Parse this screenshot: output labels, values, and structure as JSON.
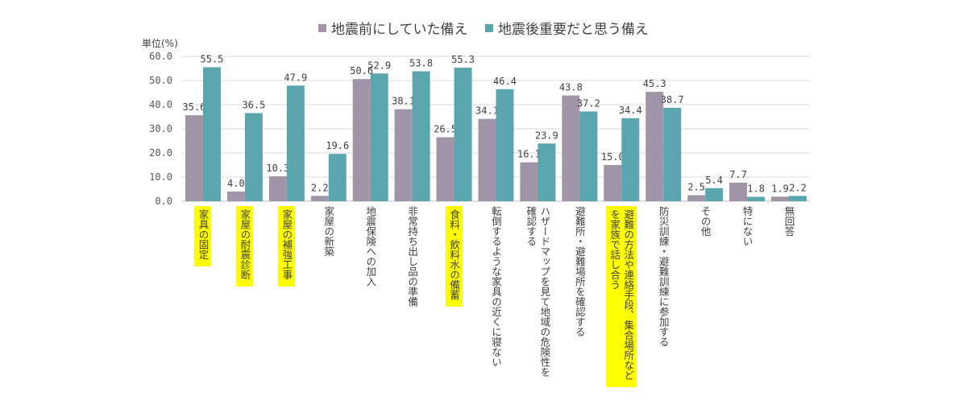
{
  "chart_data": {
    "type": "bar",
    "unit_label": "単位(%)",
    "ylim": [
      0,
      60
    ],
    "yticks": [
      "0.0",
      "10.0",
      "20.0",
      "30.0",
      "40.0",
      "50.0",
      "60.0"
    ],
    "grid": true,
    "legend_position": "top-center",
    "categories": [
      "家具の固定",
      "家屋の耐震診断",
      "家屋の補強工事",
      "家屋の新築",
      "地震保険への加入",
      "非常持ち出し品の準備",
      "食料・飲料水の備蓄",
      "転倒するような家具の近くに寝ない",
      "ハザードマップを見て地域の危険性を\n確認する",
      "避難所・避難場所を確認する",
      "避難の方法や連絡手段、集合場所など\nを家族で話し合う",
      "防災訓練・避難訓練に参加する",
      "その他",
      "特にない",
      "無回答"
    ],
    "highlighted": [
      true,
      true,
      true,
      false,
      false,
      false,
      true,
      false,
      false,
      false,
      true,
      false,
      false,
      false,
      false
    ],
    "series": [
      {
        "name": "地震前にしていた備え",
        "color": "#A095A8",
        "values": [
          35.6,
          4.0,
          10.3,
          2.2,
          50.6,
          38.1,
          26.5,
          34.1,
          16.1,
          43.8,
          15.0,
          45.3,
          2.5,
          7.7,
          1.9
        ],
        "labels": [
          "35.6",
          "4.0",
          "10.3",
          "2.2",
          "50.6",
          "38.1",
          "26.5",
          "34.1",
          "16.1",
          "43.8",
          "15.0",
          "45.3",
          "2.5",
          "7.7",
          "1.9"
        ]
      },
      {
        "name": "地震後重要だと思う備え",
        "color": "#5BA6AE",
        "values": [
          55.5,
          36.5,
          47.9,
          19.6,
          52.9,
          53.8,
          55.3,
          46.4,
          23.9,
          37.2,
          34.4,
          38.7,
          5.4,
          1.8,
          2.2
        ],
        "labels": [
          "55.5",
          "36.5",
          "47.9",
          "19.6",
          "52.9",
          "53.8",
          "55.3",
          "46.4",
          "23.9",
          "37.2",
          "34.4",
          "38.7",
          "5.4",
          "1.8",
          "2.2"
        ]
      }
    ]
  }
}
